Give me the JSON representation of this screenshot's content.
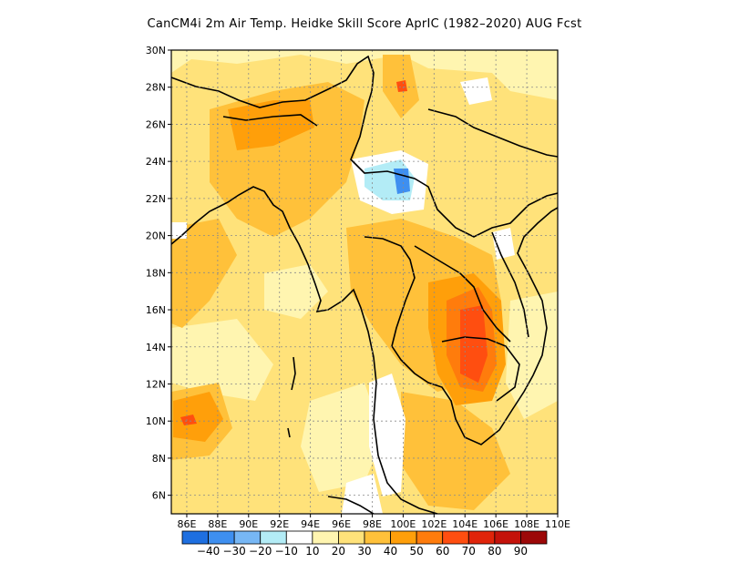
{
  "title": "CanCM4i  2m Air Temp. Heidke Skill Score AprIC (1982–2020) AUG Fcst",
  "map": {
    "lon_range": [
      85,
      110
    ],
    "lat_range": [
      5,
      30
    ],
    "lon_ticks": [
      "86E",
      "88E",
      "90E",
      "92E",
      "94E",
      "96E",
      "98E",
      "100E",
      "102E",
      "104E",
      "106E",
      "108E",
      "110E"
    ],
    "lat_ticks": [
      "6N",
      "8N",
      "10N",
      "12N",
      "14N",
      "16N",
      "18N",
      "20N",
      "22N",
      "24N",
      "26N",
      "28N",
      "30N"
    ],
    "grid": "dotted",
    "land_outline_color": "#000000"
  },
  "colorbar": {
    "colors": [
      "#1e6fe0",
      "#3e8ff0",
      "#77b7f5",
      "#b3ecf6",
      "#ffffff",
      "#fff5b0",
      "#ffe27a",
      "#ffc13a",
      "#ff9f0a",
      "#ff7c0c",
      "#ff4e10",
      "#e0240a",
      "#c4120a",
      "#9c0808"
    ],
    "labels": [
      "−40",
      "−30",
      "−20",
      "−10",
      "10",
      "20",
      "30",
      "40",
      "50",
      "60",
      "70",
      "80",
      "90"
    ]
  },
  "field_regions": [
    {
      "name": "background",
      "level": "20"
    },
    {
      "name": "bay-of-bengal-band",
      "level": "30"
    },
    {
      "name": "southwest-band",
      "level": "30"
    },
    {
      "name": "bangladesh-myanmar-north",
      "level": "40"
    },
    {
      "name": "northeast-india",
      "level": "50"
    },
    {
      "name": "thailand-central",
      "level": "40"
    },
    {
      "name": "cambodia-laos-core",
      "level": "60"
    },
    {
      "name": "cambodia-peak",
      "level": "70"
    },
    {
      "name": "yunnan-negative",
      "level": "-10"
    },
    {
      "name": "yunnan-negative-core",
      "level": "-30"
    },
    {
      "name": "andaman-west-hotspot",
      "level": "50"
    },
    {
      "name": "malay-peninsula-low",
      "level": "10"
    }
  ]
}
